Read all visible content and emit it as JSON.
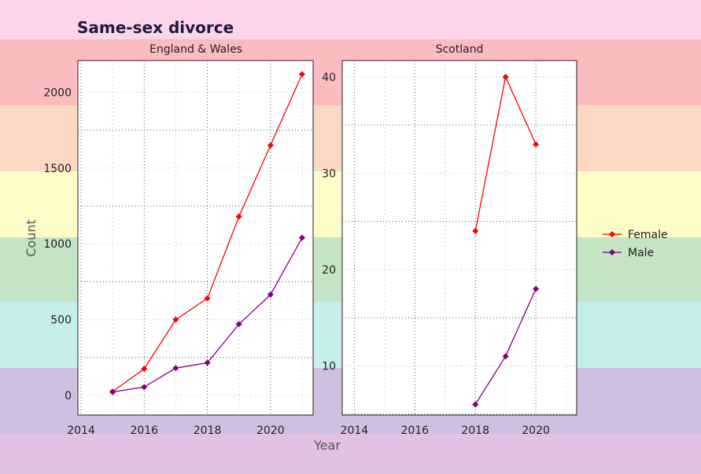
{
  "chart_data": {
    "type": "line",
    "title": "Same-sex divorce",
    "xlabel": "Year",
    "ylabel": "Count",
    "legend_position": "right",
    "grid": true,
    "background_bands": [
      "#fdd5ea",
      "#fbbcc0",
      "#fbd9c4",
      "#fdfbc6",
      "#c5e3c5",
      "#c4efed",
      "#cfc0e2",
      "#e2c2e2"
    ],
    "series_colors": {
      "Female": "#ff0000",
      "Male": "#800080"
    },
    "facets": [
      {
        "name": "England & Wales",
        "xlim": [
          2013.9,
          2021.35
        ],
        "ylim": [
          -130,
          2210
        ],
        "x_ticks": [
          2014,
          2016,
          2018,
          2020
        ],
        "y_ticks": [
          0,
          500,
          1000,
          1500,
          2000
        ],
        "series": [
          {
            "name": "Female",
            "x": [
              2015,
              2016,
              2017,
              2018,
              2019,
              2020,
              2021
            ],
            "values": [
              25,
              175,
              500,
              640,
              1180,
              1650,
              2120
            ]
          },
          {
            "name": "Male",
            "x": [
              2015,
              2016,
              2017,
              2018,
              2019,
              2020,
              2021
            ],
            "values": [
              22,
              55,
              180,
              215,
              470,
              665,
              1040
            ]
          }
        ]
      },
      {
        "name": "Scotland",
        "xlim": [
          2013.6,
          2021.35
        ],
        "ylim": [
          4.9,
          41.7
        ],
        "x_ticks": [
          2014,
          2016,
          2018,
          2020
        ],
        "y_ticks": [
          10,
          20,
          30,
          40
        ],
        "series": [
          {
            "name": "Female",
            "x": [
              2018,
              2019,
              2020
            ],
            "values": [
              24,
              40,
              33
            ]
          },
          {
            "name": "Male",
            "x": [
              2018,
              2019,
              2020
            ],
            "values": [
              6,
              11,
              18
            ]
          }
        ]
      }
    ],
    "legend": [
      "Female",
      "Male"
    ]
  }
}
